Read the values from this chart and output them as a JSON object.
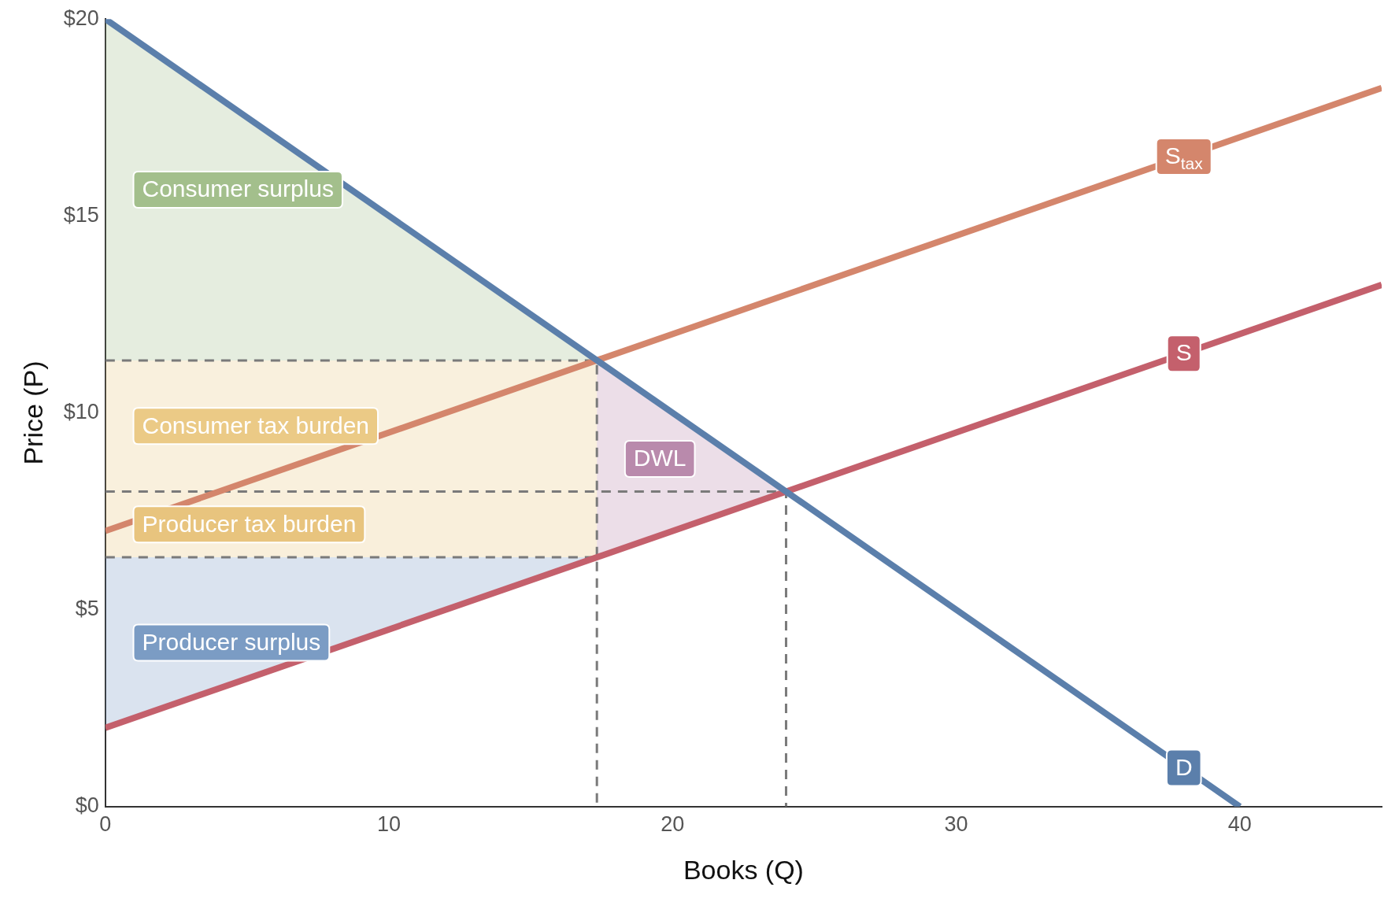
{
  "chart_data": {
    "type": "line",
    "xlabel": "Books (Q)",
    "ylabel": "Price (P)",
    "xlim": [
      0,
      45
    ],
    "ylim": [
      0,
      20
    ],
    "xticks": [
      0,
      10,
      20,
      30,
      40
    ],
    "yticks": [
      {
        "value": 0,
        "label": "$0"
      },
      {
        "value": 5,
        "label": "$5"
      },
      {
        "value": 10,
        "label": "$10"
      },
      {
        "value": 15,
        "label": "$15"
      },
      {
        "value": 20,
        "label": "$20"
      }
    ],
    "grid": false,
    "legend": false,
    "marker": "none",
    "series": [
      {
        "type": "area",
        "name": "Consumer surplus",
        "color": "#a3bf8c",
        "x": [
          0,
          17.33,
          0
        ],
        "values": [
          20,
          11.33,
          11.33
        ]
      },
      {
        "type": "area",
        "name": "Consumer tax burden",
        "color": "#ebca86",
        "x": [
          0,
          17.33,
          17.33,
          0
        ],
        "values": [
          11.33,
          11.33,
          8,
          8
        ]
      },
      {
        "type": "area",
        "name": "Producer tax burden",
        "color": "#e8c47e",
        "x": [
          0,
          17.33,
          17.33,
          0
        ],
        "values": [
          8,
          8,
          6.33,
          6.33
        ]
      },
      {
        "type": "area",
        "name": "Producer surplus",
        "color": "#7b9cc4",
        "x": [
          0,
          17.33,
          0
        ],
        "values": [
          6.33,
          6.33,
          2
        ]
      },
      {
        "type": "area",
        "name": "DWL",
        "color": "#b98aac",
        "x": [
          17.33,
          24,
          17.33
        ],
        "values": [
          11.33,
          8,
          6.33
        ]
      },
      {
        "color": "#7a7a7a",
        "line_style": "dashed",
        "x": [
          0,
          17.33,
          17.33
        ],
        "values": [
          11.33,
          11.33,
          6.33
        ]
      },
      {
        "color": "#7a7a7a",
        "line_style": "dashed",
        "x": [
          0,
          24,
          24
        ],
        "values": [
          8,
          8,
          0
        ]
      },
      {
        "color": "#7a7a7a",
        "line_style": "dashed",
        "x": [
          0,
          17.33,
          17.33
        ],
        "values": [
          6.33,
          6.33,
          0
        ]
      },
      {
        "name": "D",
        "color": "#5b7fab",
        "line_style": "solid",
        "x": [
          0,
          40
        ],
        "values": [
          20,
          0
        ]
      },
      {
        "name": "S$_{tax}$",
        "color": "#d4866c",
        "line_style": "solid",
        "x": [
          0,
          45
        ],
        "values": [
          7,
          18.25
        ]
      },
      {
        "name": "S",
        "color": "#c4606c",
        "line_style": "solid",
        "x": [
          0,
          45
        ],
        "values": [
          2,
          13.25
        ]
      }
    ]
  }
}
